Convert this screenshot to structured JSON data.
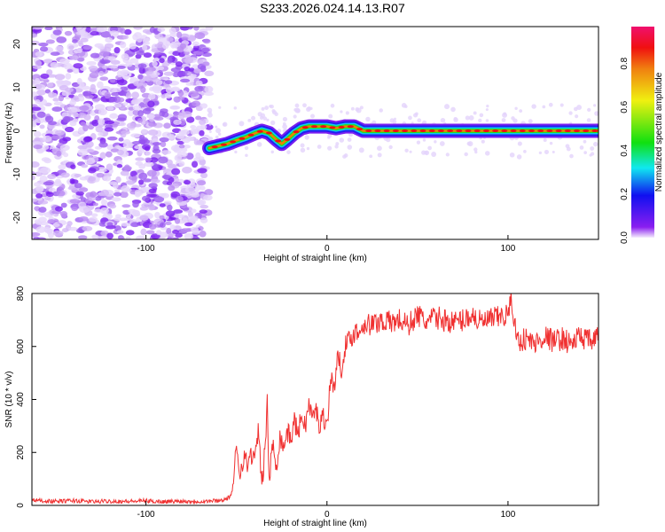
{
  "chart_data": [
    {
      "type": "heatmap",
      "title": "S233.2026.024.14.13.R07",
      "xlabel": "Height of straight line (km)",
      "ylabel": "Frequency (Hz)",
      "xlim": [
        -163,
        150
      ],
      "ylim": [
        -25,
        24
      ],
      "xticks": [
        -100,
        0,
        100
      ],
      "yticks": [
        -20,
        -10,
        0,
        10,
        20
      ],
      "xtick_labels": [
        "-100",
        "0",
        "100"
      ],
      "ytick_labels": [
        "-20",
        "-10",
        "0",
        "10",
        "20"
      ],
      "noise_region_x": [
        -163,
        -65
      ],
      "ridge": {
        "x": [
          -65,
          -60,
          -55,
          -50,
          -45,
          -40,
          -36,
          -32,
          -28,
          -25,
          -22,
          -18,
          -14,
          -10,
          -5,
          0,
          5,
          10,
          15,
          20,
          40,
          60,
          80,
          100,
          120,
          150
        ],
        "y": [
          -4,
          -3.5,
          -3,
          -2.2,
          -1.5,
          -0.6,
          0,
          -0.5,
          -2,
          -3,
          -2,
          -0.5,
          0.6,
          1,
          1,
          1,
          0.6,
          1,
          1,
          0,
          0,
          0,
          0,
          0,
          0,
          0
        ]
      },
      "colorbar": {
        "label": "Normalized spectral amplitude",
        "range": [
          0,
          0.97
        ],
        "ticks": [
          "0.0",
          "0.2",
          "0.4",
          "0.6",
          "0.8"
        ]
      }
    },
    {
      "type": "line",
      "xlabel": "Height of straight line (km)",
      "ylabel": "SNR (10 * v/v)",
      "xlim": [
        -163,
        150
      ],
      "ylim": [
        0,
        800
      ],
      "xticks": [
        -100,
        0,
        100
      ],
      "xtick_labels": [
        "-100",
        "0",
        "100"
      ],
      "yticks": [
        0,
        200,
        400,
        600,
        800
      ],
      "ytick_labels": [
        "0",
        "200",
        "400",
        "600",
        "800"
      ],
      "color": "#f03030",
      "series": [
        {
          "name": "SNR",
          "x": [
            -163,
            -150,
            -140,
            -130,
            -120,
            -110,
            -100,
            -90,
            -80,
            -70,
            -60,
            -55,
            -52,
            -50,
            -48,
            -46,
            -44,
            -42,
            -40,
            -38,
            -36,
            -34,
            -33,
            -32,
            -30,
            -28,
            -26,
            -24,
            -22,
            -20,
            -18,
            -16,
            -14,
            -12,
            -10,
            -8,
            -6,
            -4,
            -2,
            0,
            2,
            4,
            6,
            8,
            10,
            12,
            14,
            16,
            18,
            20,
            25,
            30,
            35,
            40,
            45,
            50,
            55,
            60,
            65,
            70,
            75,
            80,
            85,
            90,
            95,
            100,
            102,
            105,
            110,
            115,
            120,
            125,
            130,
            135,
            140,
            145,
            150
          ],
          "y": [
            20,
            15,
            18,
            14,
            16,
            15,
            17,
            14,
            16,
            15,
            18,
            25,
            50,
            230,
            120,
            190,
            150,
            200,
            160,
            290,
            70,
            230,
            400,
            90,
            230,
            150,
            260,
            220,
            280,
            250,
            320,
            270,
            340,
            300,
            380,
            330,
            360,
            300,
            340,
            300,
            480,
            450,
            560,
            520,
            600,
            620,
            640,
            660,
            650,
            690,
            680,
            700,
            690,
            700,
            680,
            720,
            690,
            710,
            700,
            690,
            700,
            720,
            690,
            700,
            710,
            720,
            780,
            620,
            630,
            610,
            640,
            620,
            630,
            610,
            640,
            620,
            630
          ]
        }
      ]
    }
  ]
}
